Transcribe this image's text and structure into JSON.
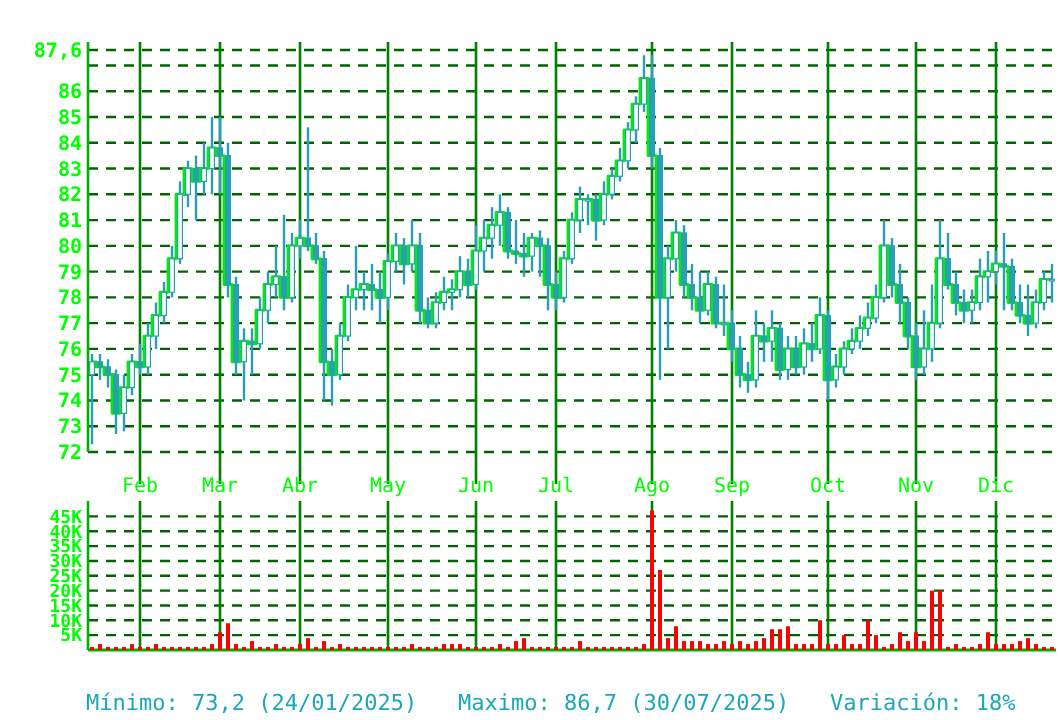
{
  "chart_data": [
    {
      "type": "candlestick",
      "grid": true,
      "categories": [
        null,
        null,
        null,
        null,
        null,
        null,
        "Feb",
        null,
        null,
        null,
        null,
        null,
        null,
        null,
        null,
        null,
        "Mar",
        null,
        null,
        null,
        null,
        null,
        null,
        null,
        null,
        null,
        "Abr",
        null,
        null,
        null,
        null,
        null,
        null,
        null,
        null,
        null,
        null,
        "May",
        null,
        null,
        null,
        null,
        null,
        null,
        null,
        null,
        null,
        null,
        "Jun",
        null,
        null,
        null,
        null,
        null,
        null,
        null,
        null,
        null,
        "Jul",
        null,
        null,
        null,
        null,
        null,
        null,
        null,
        null,
        null,
        null,
        null,
        "Ago",
        null,
        null,
        null,
        null,
        null,
        null,
        null,
        null,
        null,
        "Sep",
        null,
        null,
        null,
        null,
        null,
        null,
        null,
        null,
        null,
        null,
        null,
        "Oct",
        null,
        null,
        null,
        null,
        null,
        null,
        null,
        null,
        null,
        null,
        "Nov",
        null,
        null,
        null,
        null,
        null,
        null,
        null,
        null,
        null,
        "Dic",
        null,
        null,
        null,
        null,
        null,
        null,
        null
      ],
      "ylim": [
        72,
        87.6
      ],
      "yticks": [
        72,
        73,
        74,
        75,
        76,
        77,
        78,
        79,
        80,
        81,
        82,
        83,
        84,
        85,
        86,
        {
          "value": 87,
          "label": null
        },
        {
          "value": 87.6,
          "label": "87,6"
        }
      ],
      "series": [
        {
          "type": "step",
          "color": "#00ee00",
          "values": [
            75.5,
            75.3,
            75.0,
            73.5,
            74.5,
            75.5,
            75.3,
            76.5,
            77.3,
            78.2,
            79.5,
            82.0,
            83.0,
            82.5,
            83.0,
            83.8,
            83.5,
            78.5,
            75.5,
            76.3,
            76.2,
            77.5,
            78.5,
            78.8,
            78.0,
            80.0,
            80.3,
            80.0,
            79.5,
            75.5,
            75.0,
            76.5,
            78.0,
            78.3,
            78.5,
            78.3,
            78.0,
            79.4,
            80.0,
            79.3,
            80.0,
            77.5,
            77.0,
            77.8,
            78.2,
            78.3,
            79.0,
            78.5,
            79.8,
            80.3,
            80.8,
            81.3,
            79.8,
            79.7,
            79.6,
            80.3,
            80.0,
            78.5,
            78.0,
            79.5,
            81.0,
            81.8,
            81.8,
            81.0,
            82.0,
            82.7,
            83.3,
            84.5,
            85.5,
            86.5,
            83.5,
            78.0,
            79.5,
            80.5,
            78.5,
            78.0,
            77.5,
            78.5,
            77.0,
            77.0,
            76.0,
            75.0,
            74.8,
            76.5,
            76.3,
            76.8,
            75.2,
            76.0,
            75.3,
            76.2,
            76.0,
            77.3,
            74.8,
            75.3,
            76.0,
            76.3,
            76.8,
            77.2,
            78.0,
            80.0,
            78.5,
            77.8,
            76.5,
            75.3,
            76.0,
            77.0,
            79.5,
            78.5,
            77.8,
            77.5,
            77.8,
            78.8,
            79.0,
            79.3,
            79.2,
            77.8,
            77.3,
            77.0,
            77.8,
            78.7,
            78.7
          ]
        },
        {
          "color": "#2a9fb3",
          "ohlc": [
            [
              75.0,
              75.8,
              72.3,
              75.5
            ],
            [
              75.5,
              75.8,
              74.8,
              75.3
            ],
            [
              75.3,
              75.6,
              74.5,
              75.0
            ],
            [
              75.0,
              75.2,
              72.7,
              73.5
            ],
            [
              73.5,
              75.0,
              72.8,
              74.5
            ],
            [
              74.5,
              75.8,
              74.2,
              75.5
            ],
            [
              75.5,
              76.2,
              75.0,
              75.3
            ],
            [
              75.3,
              77.0,
              75.0,
              76.5
            ],
            [
              76.5,
              77.8,
              76.0,
              77.3
            ],
            [
              77.3,
              78.6,
              77.0,
              78.2
            ],
            [
              78.2,
              80.0,
              78.0,
              79.5
            ],
            [
              79.5,
              82.5,
              79.3,
              82.0
            ],
            [
              82.0,
              83.3,
              81.5,
              83.0
            ],
            [
              83.0,
              83.5,
              81.0,
              82.5
            ],
            [
              82.5,
              84.0,
              82.0,
              83.0
            ],
            [
              83.0,
              85.0,
              82.0,
              83.8
            ],
            [
              83.8,
              85.0,
              82.0,
              83.5
            ],
            [
              83.5,
              84.0,
              78.0,
              78.5
            ],
            [
              78.5,
              78.8,
              75.0,
              75.5
            ],
            [
              75.5,
              76.8,
              74.0,
              76.3
            ],
            [
              76.3,
              76.8,
              75.0,
              76.2
            ],
            [
              76.2,
              78.0,
              76.0,
              77.5
            ],
            [
              77.5,
              79.0,
              77.0,
              78.5
            ],
            [
              78.5,
              80.0,
              78.0,
              78.8
            ],
            [
              78.8,
              81.2,
              77.5,
              78.0
            ],
            [
              78.0,
              80.5,
              77.8,
              80.0
            ],
            [
              80.0,
              81.0,
              79.5,
              80.3
            ],
            [
              80.3,
              84.6,
              79.8,
              80.0
            ],
            [
              80.0,
              80.5,
              79.3,
              79.5
            ],
            [
              79.5,
              79.8,
              74.0,
              75.5
            ],
            [
              75.5,
              76.0,
              73.8,
              75.0
            ],
            [
              75.0,
              77.0,
              74.8,
              76.5
            ],
            [
              76.5,
              78.5,
              76.3,
              78.0
            ],
            [
              78.0,
              80.0,
              77.5,
              78.3
            ],
            [
              78.3,
              79.0,
              77.5,
              78.5
            ],
            [
              78.5,
              79.3,
              77.5,
              78.3
            ],
            [
              78.3,
              79.0,
              77.0,
              78.0
            ],
            [
              78.0,
              79.7,
              77.5,
              79.4
            ],
            [
              79.4,
              80.5,
              79.0,
              80.0
            ],
            [
              80.0,
              80.3,
              78.5,
              79.3
            ],
            [
              79.3,
              81.0,
              79.0,
              80.0
            ],
            [
              80.0,
              80.5,
              77.0,
              77.5
            ],
            [
              77.5,
              78.0,
              76.8,
              77.0
            ],
            [
              77.0,
              78.2,
              76.8,
              77.8
            ],
            [
              77.8,
              78.8,
              77.5,
              78.2
            ],
            [
              78.2,
              78.7,
              77.5,
              78.3
            ],
            [
              78.3,
              79.6,
              78.0,
              79.0
            ],
            [
              79.0,
              79.5,
              78.0,
              78.5
            ],
            [
              78.5,
              80.8,
              78.3,
              79.8
            ],
            [
              79.8,
              81.0,
              79.0,
              80.3
            ],
            [
              80.3,
              81.5,
              79.5,
              80.8
            ],
            [
              80.8,
              82.0,
              80.0,
              81.3
            ],
            [
              81.3,
              81.5,
              79.5,
              79.8
            ],
            [
              79.8,
              81.0,
              79.3,
              79.7
            ],
            [
              79.7,
              80.5,
              78.8,
              79.6
            ],
            [
              79.6,
              80.5,
              79.0,
              80.3
            ],
            [
              80.3,
              80.6,
              78.8,
              80.0
            ],
            [
              80.0,
              80.3,
              77.5,
              78.5
            ],
            [
              78.5,
              79.0,
              77.5,
              78.0
            ],
            [
              78.0,
              79.8,
              77.8,
              79.5
            ],
            [
              79.5,
              81.3,
              79.3,
              81.0
            ],
            [
              81.0,
              82.3,
              80.5,
              81.8
            ],
            [
              81.8,
              82.0,
              80.8,
              81.8
            ],
            [
              81.8,
              82.0,
              80.2,
              81.0
            ],
            [
              81.0,
              82.5,
              80.8,
              82.0
            ],
            [
              82.0,
              83.0,
              81.8,
              82.7
            ],
            [
              82.7,
              83.8,
              82.5,
              83.3
            ],
            [
              83.3,
              84.8,
              83.0,
              84.5
            ],
            [
              84.5,
              85.8,
              84.0,
              85.5
            ],
            [
              85.5,
              87.4,
              85.2,
              86.5
            ],
            [
              86.5,
              87.4,
              83.0,
              83.5
            ],
            [
              83.5,
              83.8,
              74.8,
              78.0
            ],
            [
              78.0,
              80.0,
              76.0,
              79.5
            ],
            [
              79.5,
              81.0,
              79.0,
              80.5
            ],
            [
              80.5,
              80.8,
              78.0,
              78.5
            ],
            [
              78.5,
              79.3,
              77.5,
              78.0
            ],
            [
              78.0,
              79.0,
              77.0,
              77.5
            ],
            [
              77.5,
              79.0,
              77.3,
              78.5
            ],
            [
              78.5,
              78.8,
              76.8,
              77.0
            ],
            [
              77.0,
              78.5,
              76.5,
              77.0
            ],
            [
              77.0,
              77.5,
              75.5,
              76.0
            ],
            [
              76.0,
              76.5,
              74.5,
              75.0
            ],
            [
              75.0,
              75.5,
              74.3,
              74.8
            ],
            [
              74.8,
              77.5,
              74.5,
              76.5
            ],
            [
              76.5,
              77.0,
              75.5,
              76.3
            ],
            [
              76.3,
              77.5,
              75.5,
              76.8
            ],
            [
              76.8,
              77.0,
              74.8,
              75.2
            ],
            [
              75.2,
              76.5,
              74.8,
              76.0
            ],
            [
              76.0,
              76.5,
              75.0,
              75.3
            ],
            [
              75.3,
              76.8,
              75.0,
              76.2
            ],
            [
              76.2,
              77.0,
              75.5,
              76.0
            ],
            [
              76.0,
              78.0,
              75.8,
              77.3
            ],
            [
              77.3,
              77.5,
              74.0,
              74.8
            ],
            [
              74.8,
              75.8,
              74.5,
              75.3
            ],
            [
              75.3,
              76.3,
              75.0,
              76.0
            ],
            [
              76.0,
              76.8,
              75.8,
              76.3
            ],
            [
              76.3,
              77.3,
              76.0,
              76.8
            ],
            [
              76.8,
              77.8,
              76.5,
              77.2
            ],
            [
              77.2,
              78.5,
              77.0,
              78.0
            ],
            [
              78.0,
              81.0,
              77.8,
              80.0
            ],
            [
              80.0,
              80.3,
              78.0,
              78.5
            ],
            [
              78.5,
              79.3,
              77.0,
              77.8
            ],
            [
              77.8,
              78.0,
              76.0,
              76.5
            ],
            [
              76.5,
              77.0,
              74.8,
              75.3
            ],
            [
              75.3,
              77.5,
              75.0,
              76.0
            ],
            [
              76.0,
              78.5,
              75.5,
              77.0
            ],
            [
              77.0,
              81.0,
              76.8,
              79.5
            ],
            [
              79.5,
              80.5,
              78.3,
              78.5
            ],
            [
              78.5,
              79.0,
              77.3,
              77.8
            ],
            [
              77.8,
              78.3,
              77.0,
              77.5
            ],
            [
              77.5,
              78.3,
              77.0,
              77.8
            ],
            [
              77.8,
              79.5,
              77.5,
              78.8
            ],
            [
              78.8,
              79.8,
              77.8,
              79.0
            ],
            [
              79.0,
              79.8,
              78.5,
              79.3
            ],
            [
              79.3,
              80.5,
              77.5,
              79.2
            ],
            [
              79.2,
              79.5,
              77.5,
              77.8
            ],
            [
              77.8,
              78.5,
              77.0,
              77.3
            ],
            [
              77.3,
              78.5,
              76.5,
              77.0
            ],
            [
              77.0,
              78.3,
              76.8,
              77.8
            ],
            [
              77.8,
              79.0,
              77.5,
              78.7
            ],
            [
              78.7,
              79.3,
              77.8,
              78.7
            ]
          ]
        }
      ]
    },
    {
      "type": "bar",
      "grid": true,
      "color": "#ff0000",
      "categories": [
        null,
        null,
        null,
        null,
        null,
        null,
        null,
        null,
        null,
        null,
        null,
        null,
        null,
        null,
        null,
        null,
        null,
        null,
        null,
        null,
        null,
        null,
        null,
        null,
        null,
        null,
        null,
        null,
        null,
        null,
        null,
        null,
        null,
        null,
        null,
        null,
        null,
        null,
        null,
        null,
        null,
        null,
        null,
        null,
        null,
        null,
        null,
        null,
        null,
        null,
        null,
        null,
        null,
        null,
        null,
        null,
        null,
        null,
        null,
        null,
        null,
        null,
        null,
        null,
        null,
        null,
        null,
        null,
        null,
        null,
        null,
        null,
        null,
        null,
        null,
        null,
        null,
        null,
        null,
        null,
        null,
        null,
        null,
        null,
        null,
        null,
        null,
        null,
        null,
        null,
        null,
        null,
        null,
        null,
        null,
        null,
        null,
        null,
        null,
        null,
        null,
        null,
        null,
        null,
        null,
        null,
        null,
        null,
        null,
        null,
        null,
        null,
        null,
        null,
        null,
        null,
        null,
        null,
        null,
        null,
        null
      ],
      "ylim": [
        0,
        47.5
      ],
      "yticks": [
        {
          "value": 5,
          "label": "5K"
        },
        {
          "value": 10,
          "label": "10K"
        },
        {
          "value": 15,
          "label": "15K"
        },
        {
          "value": 20,
          "label": "20K"
        },
        {
          "value": 25,
          "label": "25K"
        },
        {
          "value": 30,
          "label": "30K"
        },
        {
          "value": 35,
          "label": "35K"
        },
        {
          "value": 40,
          "label": "40K"
        },
        {
          "value": 45,
          "label": "45K"
        }
      ],
      "values": [
        1,
        2,
        1,
        1,
        1,
        2,
        1,
        1,
        2,
        1,
        1,
        1,
        1,
        1,
        1,
        2,
        6,
        9,
        2,
        1,
        3,
        1,
        1,
        2,
        1,
        1,
        2,
        4,
        1,
        3,
        1,
        2,
        1,
        1,
        1,
        1,
        1,
        1,
        1,
        1,
        2,
        1,
        1,
        1,
        2,
        2,
        2,
        1,
        1,
        1,
        1,
        2,
        1,
        3,
        4,
        1,
        1,
        1,
        1,
        1,
        1,
        3,
        1,
        1,
        1,
        1,
        1,
        1,
        1,
        2,
        47,
        27,
        4,
        8,
        3,
        3,
        3,
        2,
        2,
        3,
        2,
        3,
        2,
        3,
        4,
        7,
        7,
        8,
        2,
        2,
        2,
        10,
        2,
        2,
        5,
        2,
        2,
        10,
        5,
        1,
        2,
        6,
        3,
        6,
        3,
        20,
        20,
        1,
        2,
        1,
        1,
        2,
        6,
        2,
        2,
        2,
        3,
        4,
        2,
        1,
        1
      ],
      "annotations": [
        "Mínimo: 73,2 (24/01/2025)",
        "Maximo: 86,7 (30/07/2025)",
        "Variación: 18%"
      ]
    }
  ]
}
